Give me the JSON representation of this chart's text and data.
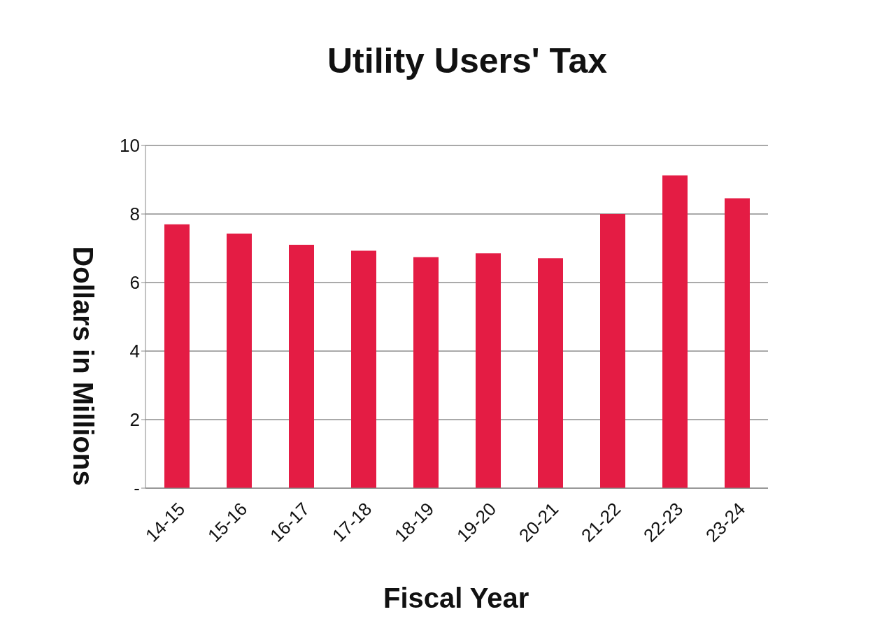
{
  "chart_data": {
    "type": "bar",
    "title": "Utility Users' Tax",
    "xlabel": "Fiscal Year",
    "ylabel": "Dollars in Millions",
    "categories": [
      "14-15",
      "15-16",
      "16-17",
      "17-18",
      "18-19",
      "19-20",
      "20-21",
      "21-22",
      "22-23",
      "23-24"
    ],
    "values": [
      7.7,
      7.43,
      7.1,
      6.93,
      6.74,
      6.85,
      6.71,
      8.0,
      9.13,
      8.46
    ],
    "color": "#e41c44",
    "ylim": [
      0,
      10
    ],
    "yticks": [
      {
        "value": 0,
        "label": "-"
      },
      2,
      4,
      6,
      8,
      10
    ],
    "grid": "y"
  }
}
